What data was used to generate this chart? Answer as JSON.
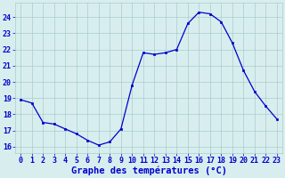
{
  "hours": [
    0,
    1,
    2,
    3,
    4,
    5,
    6,
    7,
    8,
    9,
    10,
    11,
    12,
    13,
    14,
    15,
    16,
    17,
    18,
    19,
    20,
    21,
    22,
    23
  ],
  "temperatures": [
    18.9,
    18.7,
    17.5,
    17.4,
    17.1,
    16.8,
    16.4,
    16.1,
    16.3,
    17.1,
    19.8,
    21.8,
    21.7,
    21.8,
    22.0,
    23.6,
    24.3,
    24.2,
    23.7,
    22.4,
    20.7,
    19.4,
    18.5,
    17.7
  ],
  "line_color": "#0000cc",
  "marker": "s",
  "marker_size": 2.0,
  "bg_color": "#d8eeee",
  "grid_color": "#aacccc",
  "xlabel": "Graphe des températures (°C)",
  "xlabel_color": "#0000cc",
  "ylabel_ticks": [
    16,
    17,
    18,
    19,
    20,
    21,
    22,
    23,
    24
  ],
  "ylim": [
    15.6,
    24.9
  ],
  "xlim": [
    -0.5,
    23.5
  ],
  "tick_label_color": "#0000cc",
  "xlabel_fontsize": 7.5,
  "axis_fontsize": 6.0
}
